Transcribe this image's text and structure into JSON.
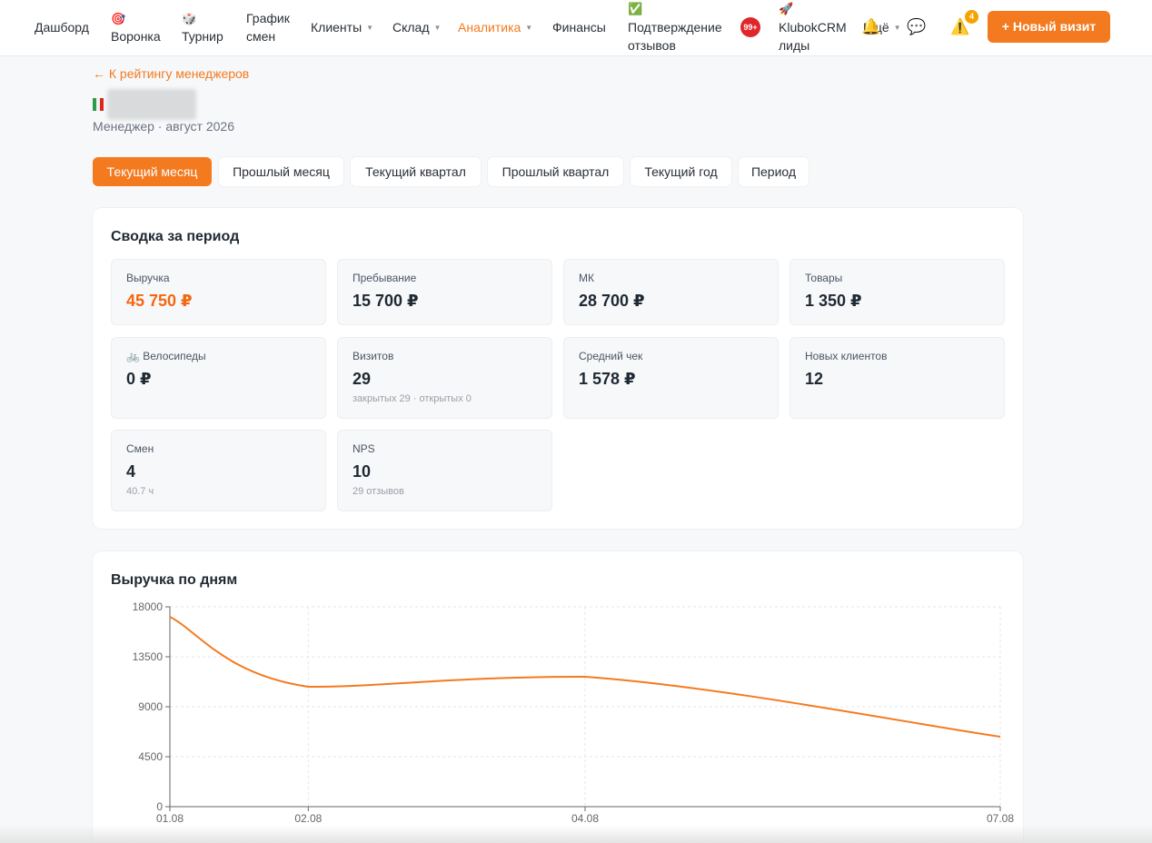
{
  "nav": {
    "items": [
      {
        "label": "Дашборд",
        "emoji": ""
      },
      {
        "label": "Воронка",
        "emoji": "🎯"
      },
      {
        "label": "Турнир",
        "emoji": "🎲"
      },
      {
        "label": "График",
        "label2": "смен"
      },
      {
        "label": "Клиенты"
      },
      {
        "label": "Склад"
      },
      {
        "label": "Аналитика"
      },
      {
        "label": "Финансы"
      },
      {
        "label": "Подтверждение",
        "label2": "отзывов",
        "emoji": "✅"
      },
      {
        "label": "KlubokCRM",
        "label2": "лиды",
        "emoji": "🚀"
      },
      {
        "label": "Ещё"
      }
    ],
    "reviews_badge": "99+",
    "warnings_count": "4",
    "new_visit_label": "+ Новый визит"
  },
  "page": {
    "back_link": "← К рейтингу менеджеров",
    "subtitle": "Менеджер · август 2026"
  },
  "tabs": [
    "Текущий месяц",
    "Прошлый месяц",
    "Текущий квартал",
    "Прошлый квартал",
    "Текущий год",
    "Период"
  ],
  "summary": {
    "title": "Сводка за период",
    "stats": [
      {
        "label": "Выручка",
        "value": "45 750 ₽",
        "sub": ""
      },
      {
        "label": "Пребывание",
        "value": "15 700 ₽",
        "sub": ""
      },
      {
        "label": "МК",
        "value": "28 700 ₽",
        "sub": ""
      },
      {
        "label": "Товары",
        "value": "1 350 ₽",
        "sub": ""
      },
      {
        "label": "🚲 Велосипеды",
        "value": "0 ₽",
        "sub": ""
      },
      {
        "label": "Визитов",
        "value": "29",
        "sub": "закрытых 29 · открытых 0"
      },
      {
        "label": "Средний чек",
        "value": "1 578 ₽",
        "sub": ""
      },
      {
        "label": "Новых клиентов",
        "value": "12",
        "sub": ""
      },
      {
        "label": "Смен",
        "value": "4",
        "sub": "40.7 ч"
      },
      {
        "label": "NPS",
        "value": "10",
        "sub": "29 отзывов"
      }
    ]
  },
  "revenue_chart": {
    "title": "Выручка по дням"
  },
  "chart_data": {
    "type": "line",
    "title": "Выручка по дням",
    "x": [
      "01.08",
      "02.08",
      "04.08",
      "07.08"
    ],
    "y": [
      17100,
      10800,
      11700,
      6300
    ],
    "y_ticks": [
      0,
      4500,
      9000,
      13500,
      18000
    ],
    "ylim": [
      0,
      18000
    ],
    "grid": true,
    "color": "#f47a1f"
  }
}
